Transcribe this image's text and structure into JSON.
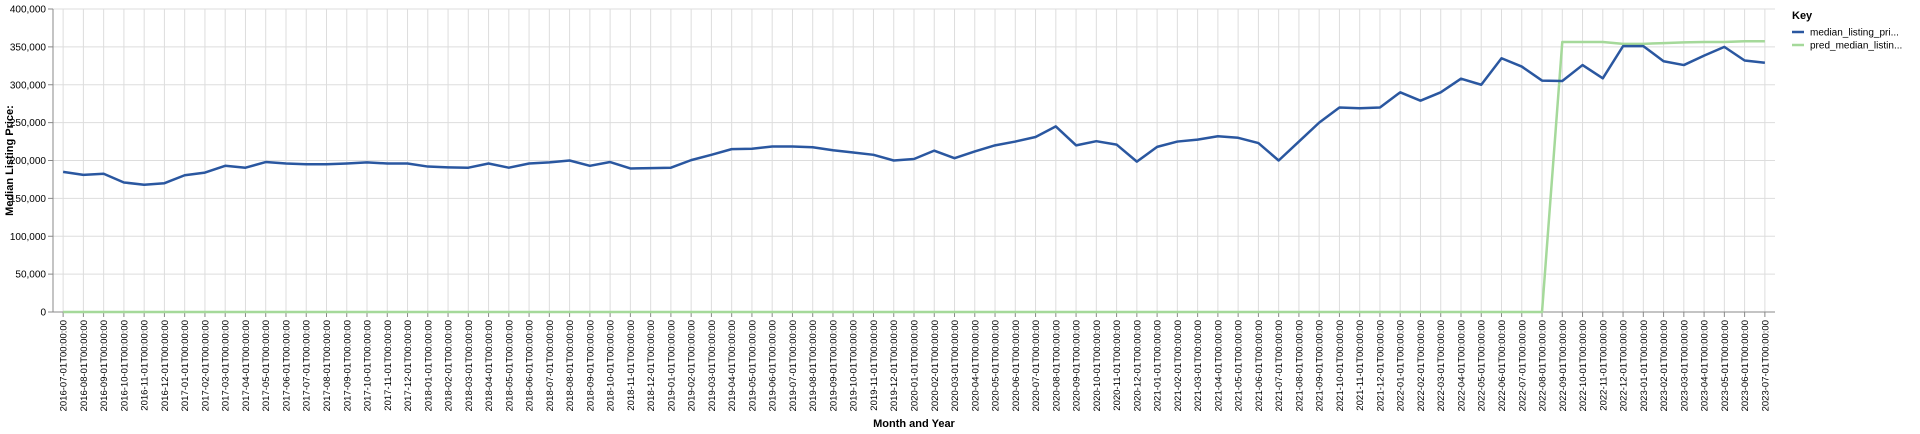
{
  "chart_data": {
    "type": "line",
    "xlabel": "Month and Year",
    "ylabel": "Median Listing Price:",
    "ylim": [
      0,
      400000
    ],
    "y_ticks": [
      "0",
      "50,000",
      "100,000",
      "150,000",
      "200,000",
      "250,000",
      "300,000",
      "350,000",
      "400,000"
    ],
    "grid": true,
    "legend": {
      "title": "Key",
      "placement": "right"
    },
    "colors": {
      "median_listing_price": "#2a57a0",
      "pred_median_listing_price": "#a5d99a"
    },
    "x": [
      "2016-07-01T00:00:00",
      "2016-08-01T00:00:00",
      "2016-09-01T00:00:00",
      "2016-10-01T00:00:00",
      "2016-11-01T00:00:00",
      "2016-12-01T00:00:00",
      "2017-01-01T00:00:00",
      "2017-02-01T00:00:00",
      "2017-03-01T00:00:00",
      "2017-04-01T00:00:00",
      "2017-05-01T00:00:00",
      "2017-06-01T00:00:00",
      "2017-07-01T00:00:00",
      "2017-08-01T00:00:00",
      "2017-09-01T00:00:00",
      "2017-10-01T00:00:00",
      "2017-11-01T00:00:00",
      "2017-12-01T00:00:00",
      "2018-01-01T00:00:00",
      "2018-02-01T00:00:00",
      "2018-03-01T00:00:00",
      "2018-04-01T00:00:00",
      "2018-05-01T00:00:00",
      "2018-06-01T00:00:00",
      "2018-07-01T00:00:00",
      "2018-08-01T00:00:00",
      "2018-09-01T00:00:00",
      "2018-10-01T00:00:00",
      "2018-11-01T00:00:00",
      "2018-12-01T00:00:00",
      "2019-01-01T00:00:00",
      "2019-02-01T00:00:00",
      "2019-03-01T00:00:00",
      "2019-04-01T00:00:00",
      "2019-05-01T00:00:00",
      "2019-06-01T00:00:00",
      "2019-07-01T00:00:00",
      "2019-08-01T00:00:00",
      "2019-09-01T00:00:00",
      "2019-10-01T00:00:00",
      "2019-11-01T00:00:00",
      "2019-12-01T00:00:00",
      "2020-01-01T00:00:00",
      "2020-02-01T00:00:00",
      "2020-03-01T00:00:00",
      "2020-04-01T00:00:00",
      "2020-05-01T00:00:00",
      "2020-06-01T00:00:00",
      "2020-07-01T00:00:00",
      "2020-08-01T00:00:00",
      "2020-09-01T00:00:00",
      "2020-10-01T00:00:00",
      "2020-11-01T00:00:00",
      "2020-12-01T00:00:00",
      "2021-01-01T00:00:00",
      "2021-02-01T00:00:00",
      "2021-03-01T00:00:00",
      "2021-04-01T00:00:00",
      "2021-05-01T00:00:00",
      "2021-06-01T00:00:00",
      "2021-07-01T00:00:00",
      "2021-08-01T00:00:00",
      "2021-09-01T00:00:00",
      "2021-10-01T00:00:00",
      "2021-11-01T00:00:00",
      "2021-12-01T00:00:00",
      "2022-01-01T00:00:00",
      "2022-02-01T00:00:00",
      "2022-03-01T00:00:00",
      "2022-04-01T00:00:00",
      "2022-05-01T00:00:00",
      "2022-06-01T00:00:00",
      "2022-07-01T00:00:00",
      "2022-08-01T00:00:00",
      "2022-09-01T00:00:00",
      "2022-10-01T00:00:00",
      "2022-11-01T00:00:00",
      "2022-12-01T00:00:00",
      "2023-01-01T00:00:00",
      "2023-02-01T00:00:00",
      "2023-03-01T00:00:00",
      "2023-04-01T00:00:00",
      "2023-05-01T00:00:00",
      "2023-06-01T00:00:00",
      "2023-07-01T00:00:00"
    ],
    "series": [
      {
        "name": "median_listing_pri...",
        "values": [
          185000,
          181000,
          182500,
          171000,
          168000,
          170000,
          180500,
          184000,
          193000,
          190500,
          198000,
          196000,
          195000,
          195000,
          196000,
          197500,
          196000,
          196000,
          192000,
          191000,
          190500,
          196000,
          190500,
          196000,
          197500,
          200000,
          193000,
          198000,
          189500,
          190000,
          190500,
          200500,
          207500,
          215000,
          215500,
          218500,
          218500,
          217500,
          213500,
          210500,
          207500,
          200000,
          202000,
          213000,
          203000,
          212000,
          220000,
          225000,
          231000,
          245000,
          220000,
          225500,
          221000,
          198500,
          218000,
          225000,
          227500,
          232000,
          230000,
          223000,
          200000,
          225000,
          250000,
          270000,
          269000,
          270000,
          290000,
          279000,
          290000,
          308000,
          300000,
          335000,
          324000,
          305500,
          305000,
          326000,
          308500,
          351000,
          351000,
          331000,
          326000,
          338500,
          350000,
          332000,
          329000
        ]
      },
      {
        "name": "pred_median_listin...",
        "values": [
          0,
          0,
          0,
          0,
          0,
          0,
          0,
          0,
          0,
          0,
          0,
          0,
          0,
          0,
          0,
          0,
          0,
          0,
          0,
          0,
          0,
          0,
          0,
          0,
          0,
          0,
          0,
          0,
          0,
          0,
          0,
          0,
          0,
          0,
          0,
          0,
          0,
          0,
          0,
          0,
          0,
          0,
          0,
          0,
          0,
          0,
          0,
          0,
          0,
          0,
          0,
          0,
          0,
          0,
          0,
          0,
          0,
          0,
          0,
          0,
          0,
          0,
          0,
          0,
          0,
          0,
          0,
          0,
          0,
          0,
          0,
          0,
          0,
          0,
          356500,
          356500,
          356500,
          354000,
          354000,
          355000,
          356000,
          356500,
          356500,
          357500,
          357500
        ]
      }
    ]
  }
}
